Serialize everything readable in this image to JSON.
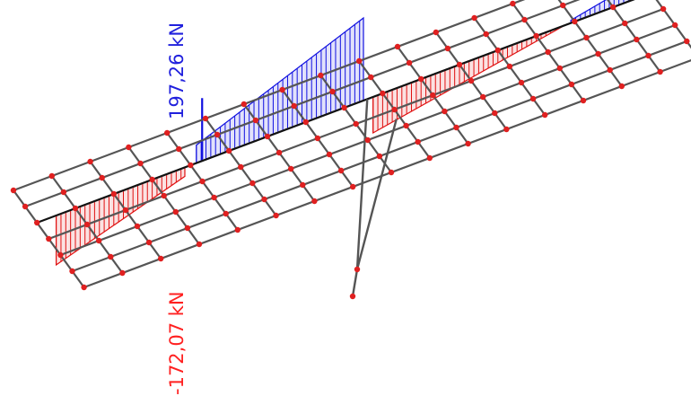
{
  "labels": {
    "max_value": "197,26 kN",
    "min_value": "-172,07 kN"
  },
  "colors": {
    "positive": "#1010e0",
    "negative": "#e01010",
    "grid": "#555555",
    "node": "#e02020",
    "axis": "#111111",
    "label_positive": "#2020dd",
    "label_negative": "#ff2020"
  },
  "icons": {
    "node": "red-dot"
  }
}
